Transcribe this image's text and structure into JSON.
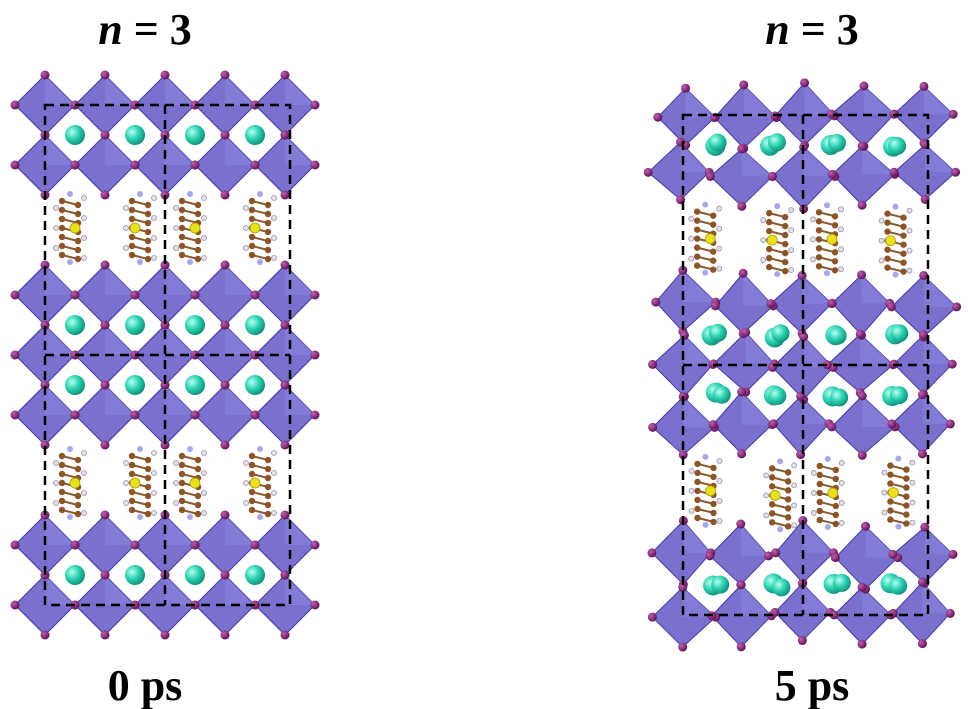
{
  "panels": [
    {
      "title": {
        "variable": "n",
        "value": "= 3"
      },
      "caption": "0 ps"
    },
    {
      "title": {
        "variable": "n",
        "value": "= 3"
      },
      "caption": "5 ps"
    }
  ]
}
